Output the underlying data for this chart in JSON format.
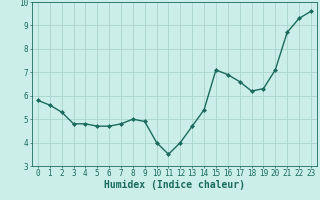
{
  "x": [
    0,
    1,
    2,
    3,
    4,
    5,
    6,
    7,
    8,
    9,
    10,
    11,
    12,
    13,
    14,
    15,
    16,
    17,
    18,
    19,
    20,
    21,
    22,
    23
  ],
  "y": [
    5.8,
    5.6,
    5.3,
    4.8,
    4.8,
    4.7,
    4.7,
    4.8,
    5.0,
    4.9,
    4.0,
    3.5,
    4.0,
    4.7,
    5.4,
    7.1,
    6.9,
    6.6,
    6.2,
    6.3,
    7.1,
    8.7,
    9.3,
    9.6
  ],
  "line_color": "#1a6b5e",
  "marker": "D",
  "marker_size": 2.0,
  "line_width": 1.0,
  "bg_color": "#cceee8",
  "grid_color": "#aad4cc",
  "xlabel": "Humidex (Indice chaleur)",
  "xlabel_fontsize": 7.0,
  "xlabel_color": "#1a6b5e",
  "tick_fontsize": 5.5,
  "tick_color": "#1a6b5e",
  "xlim": [
    -0.5,
    23.5
  ],
  "ylim": [
    3,
    10
  ],
  "yticks": [
    3,
    4,
    5,
    6,
    7,
    8,
    9,
    10
  ],
  "xticks": [
    0,
    1,
    2,
    3,
    4,
    5,
    6,
    7,
    8,
    9,
    10,
    11,
    12,
    13,
    14,
    15,
    16,
    17,
    18,
    19,
    20,
    21,
    22,
    23
  ]
}
